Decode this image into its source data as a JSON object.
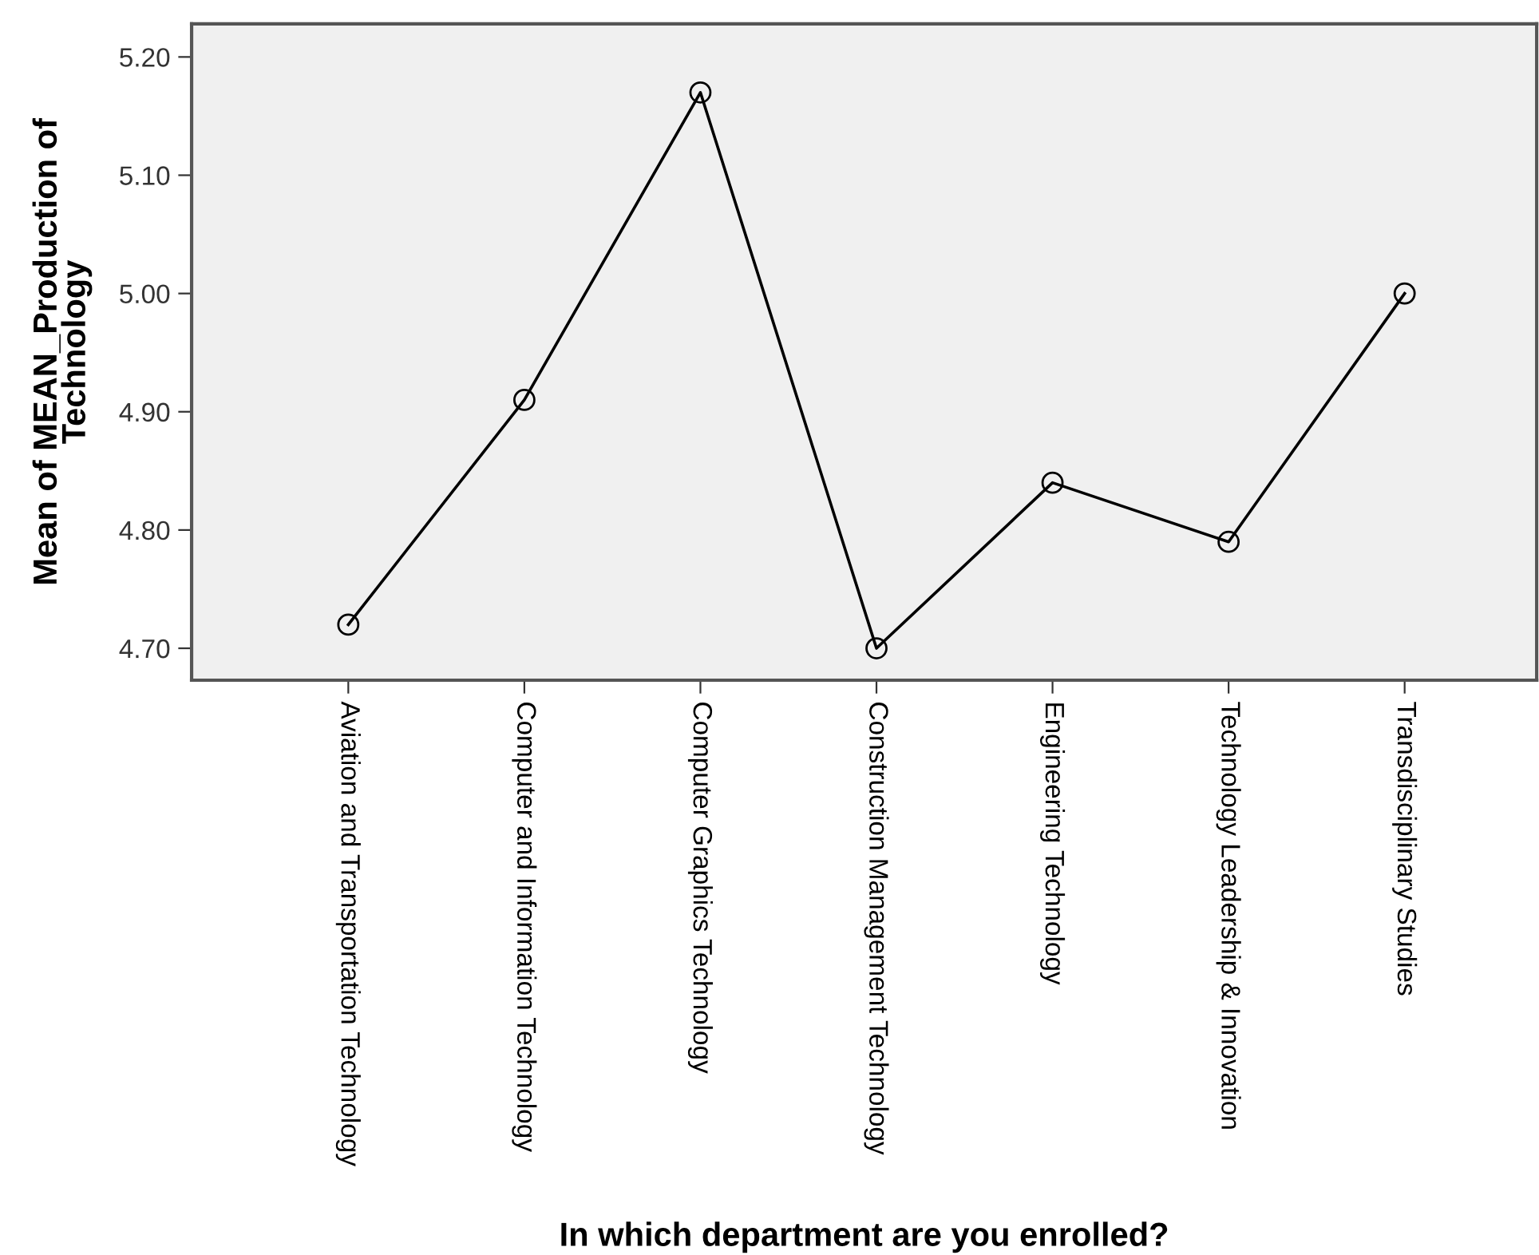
{
  "chart_data": {
    "type": "line",
    "xlabel": "In which department are you enrolled?",
    "ylabel": "Mean of MEAN_Production of\nTechnology",
    "categories": [
      "Aviation and Transportation Technology",
      "Computer and Information Technology",
      "Computer Graphics Technology",
      "Construction Management Technology",
      "Engineering Technology",
      "Technology Leadership & Innovation",
      "Transdisciplinary Studies"
    ],
    "series": [
      {
        "color": "#000000",
        "values": [
          4.72,
          4.91,
          5.17,
          4.7,
          4.84,
          4.79,
          5.0
        ]
      }
    ],
    "ylim": [
      4.673,
      5.228
    ],
    "yticks": [
      {
        "value": 4.7,
        "label": "4.70"
      },
      {
        "value": 4.8,
        "label": "4.80"
      },
      {
        "value": 4.9,
        "label": "4.90"
      },
      {
        "value": 5.0,
        "label": "5.00"
      },
      {
        "value": 5.1,
        "label": "5.10"
      },
      {
        "value": 5.2,
        "label": "5.20"
      }
    ],
    "marker": "circle",
    "line_style": "solid",
    "grid": false,
    "legend": false
  }
}
